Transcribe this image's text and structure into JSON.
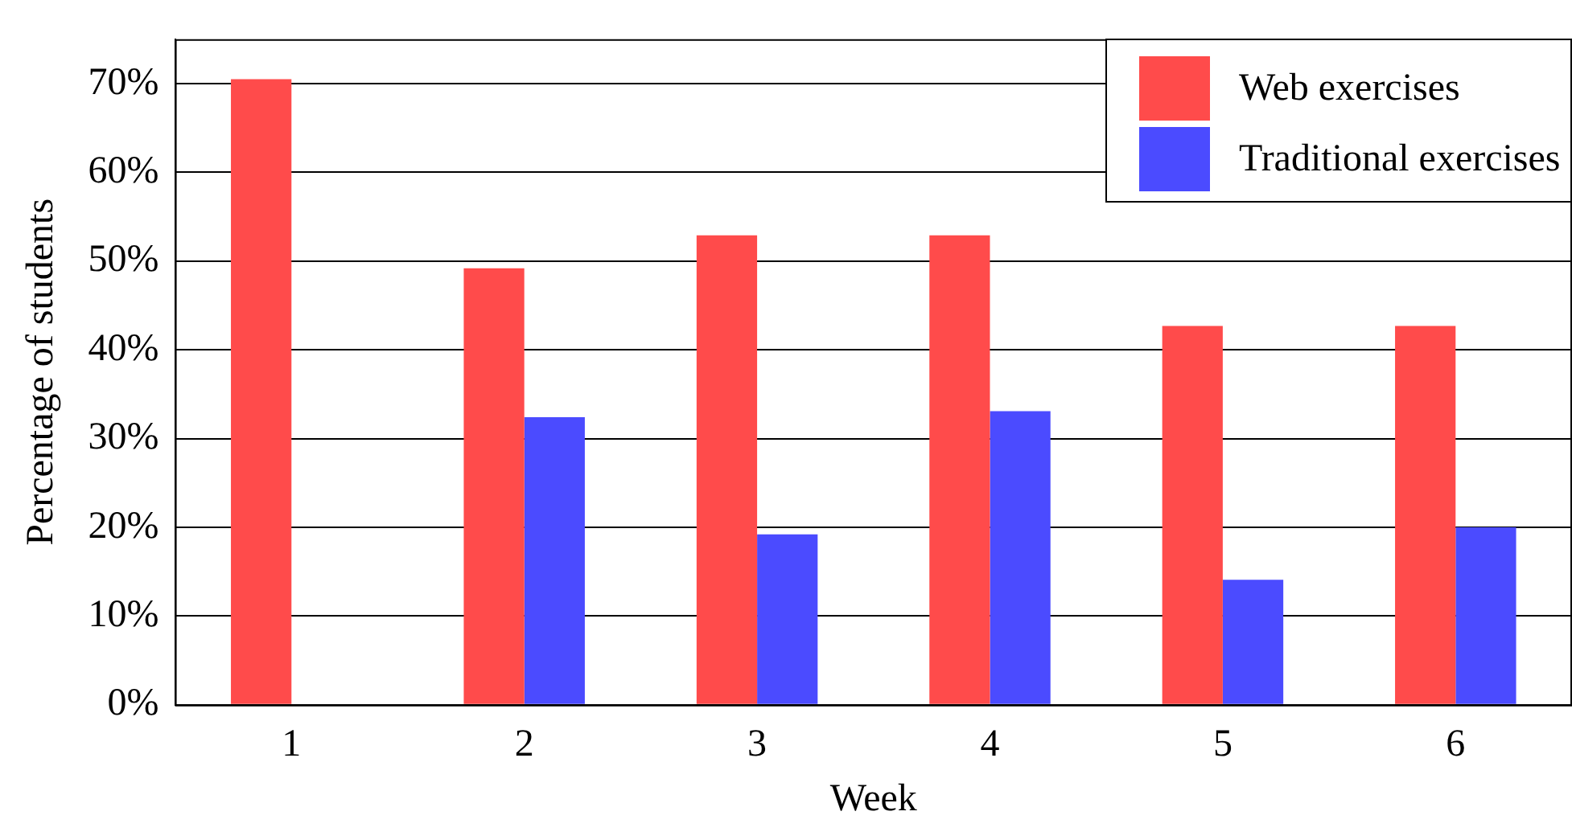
{
  "chart_data": {
    "type": "bar",
    "xlabel": "Week",
    "ylabel": "Percentage of students",
    "categories": [
      "1",
      "2",
      "3",
      "4",
      "5",
      "6"
    ],
    "series": [
      {
        "name": "Web exercises",
        "color": "#ff4b4b",
        "values": [
          70.5,
          49.2,
          52.9,
          52.9,
          42.7,
          42.7
        ]
      },
      {
        "name": "Traditional exercises",
        "color": "#4b4bff",
        "values": [
          null,
          32.4,
          19.2,
          33.1,
          14.1,
          20.0
        ]
      }
    ],
    "ylim": [
      0,
      75
    ],
    "yticks": [
      {
        "value": 0,
        "label": "0%"
      },
      {
        "value": 10,
        "label": "10%"
      },
      {
        "value": 20,
        "label": "20%"
      },
      {
        "value": 30,
        "label": "30%"
      },
      {
        "value": 40,
        "label": "40%"
      },
      {
        "value": 50,
        "label": "50%"
      },
      {
        "value": 60,
        "label": "60%"
      },
      {
        "value": 70,
        "label": "70%"
      }
    ],
    "grid": "y",
    "legend": "top right"
  }
}
